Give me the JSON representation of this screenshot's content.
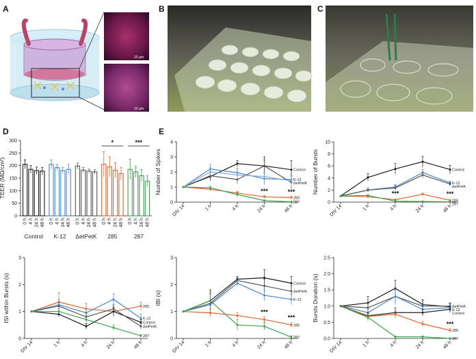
{
  "panel_labels": {
    "a": "A",
    "b": "B",
    "c": "C",
    "d": "D",
    "e": "E"
  },
  "colors": {
    "control": "#1a1a1a",
    "k12": "#4a86c8",
    "detpetk": "#555555",
    "s285": "#e0622b",
    "s287": "#3aa14a"
  },
  "scale_bars": [
    "10 µm",
    "10 µm"
  ],
  "chart_data": [
    {
      "id": "teer",
      "type": "bar",
      "ylabel": "TEER (MΩ/cm²)",
      "ylim": [
        0,
        300
      ],
      "yticks": [
        0,
        50,
        100,
        150,
        200,
        250,
        300
      ],
      "day_labels": [
        "0 h",
        "4 h",
        "24 h",
        "48 h"
      ],
      "groups": [
        {
          "name": "Control",
          "color": "#1a1a1a",
          "values": [
            205,
            185,
            180,
            178
          ],
          "err": [
            18,
            15,
            14,
            14
          ]
        },
        {
          "name": "K-12",
          "color": "#4a86c8",
          "values": [
            205,
            192,
            180,
            185
          ],
          "err": [
            18,
            12,
            12,
            20
          ]
        },
        {
          "name": "ΔetPetK",
          "color": "#555555",
          "values": [
            198,
            182,
            178,
            175
          ],
          "err": [
            12,
            10,
            8,
            8
          ]
        },
        {
          "name": "285",
          "color": "#e0622b",
          "values": [
            205,
            195,
            182,
            168
          ],
          "err": [
            50,
            40,
            30,
            25
          ]
        },
        {
          "name": "287",
          "color": "#3aa14a",
          "values": [
            185,
            175,
            160,
            138
          ],
          "err": [
            40,
            22,
            24,
            22
          ]
        }
      ],
      "significance": [
        {
          "group": "285",
          "label": "*"
        },
        {
          "group": "287",
          "label": "***"
        }
      ]
    },
    {
      "id": "spikes",
      "type": "line",
      "ylabel": "Number of Spikes",
      "ylim": [
        0,
        4
      ],
      "yticks": [
        0,
        1,
        2,
        3,
        4
      ],
      "x": [
        "DIV 14",
        "1 h",
        "4 h",
        "24 h",
        "48 h"
      ],
      "series": [
        {
          "name": "Control",
          "color": "#1a1a1a",
          "values": [
            1,
            1.7,
            2.55,
            2.4,
            2.15
          ],
          "err": [
            0,
            0.3,
            0.2,
            0.6,
            0.6
          ]
        },
        {
          "name": "",
          "color": "#555555",
          "values": [
            1,
            1.75,
            1.5,
            2.4,
            1.3
          ],
          "err": [
            0,
            0.3,
            0.3,
            0.4,
            0.4
          ]
        },
        {
          "name": "K-12",
          "color": "#4a86c8",
          "values": [
            1,
            2.2,
            1.95,
            1.55,
            1.5
          ],
          "err": [
            0,
            0.3,
            0.3,
            0.4,
            0.3
          ]
        },
        {
          "name": "ΔetPetK",
          "color": "#8aaed6",
          "values": [
            1,
            2.0,
            1.8,
            1.7,
            1.4
          ],
          "err": [
            0,
            0.3,
            0.3,
            0.3,
            0.3
          ]
        },
        {
          "name": "285",
          "color": "#e0622b",
          "values": [
            1,
            0.85,
            0.6,
            0.35,
            0.3
          ],
          "err": [
            0,
            0.1,
            0.1,
            0.08,
            0.08
          ]
        },
        {
          "name": "287",
          "color": "#3aa14a",
          "values": [
            1,
            0.95,
            0.5,
            0.1,
            0.02
          ],
          "err": [
            0,
            0.1,
            0.15,
            0.05,
            0.02
          ]
        }
      ],
      "annotations": [
        {
          "x": "24 h",
          "y": 0.6,
          "label": "***"
        },
        {
          "x": "48 h",
          "y": 0.55,
          "label": "***"
        }
      ]
    },
    {
      "id": "bursts",
      "type": "line",
      "ylabel": "Number of Bursts",
      "ylim": [
        0,
        10
      ],
      "yticks": [
        0,
        2,
        4,
        6,
        8,
        10
      ],
      "x": [
        "DIV 14",
        "1 h",
        "4 h",
        "24 h",
        "48 h"
      ],
      "series": [
        {
          "name": "Control",
          "color": "#1a1a1a",
          "values": [
            1,
            4.1,
            5.5,
            6.7,
            5.4
          ],
          "err": [
            0,
            0.6,
            0.9,
            0.9,
            0.7
          ]
        },
        {
          "name": "K-12",
          "color": "#4a86c8",
          "values": [
            1,
            2.0,
            2.5,
            4.9,
            3.2
          ],
          "err": [
            0,
            0.3,
            0.4,
            0.5,
            0.3
          ]
        },
        {
          "name": "ΔetPetK",
          "color": "#555555",
          "values": [
            1,
            2.0,
            2.35,
            4.5,
            3.0
          ],
          "err": [
            0,
            0.3,
            0.4,
            0.5,
            0.3
          ]
        },
        {
          "name": "285",
          "color": "#e0622b",
          "values": [
            1,
            0.9,
            0.4,
            1.3,
            0.3
          ],
          "err": [
            0,
            0.1,
            0.1,
            0.2,
            0.1
          ]
        },
        {
          "name": "287",
          "color": "#3aa14a",
          "values": [
            1,
            1.1,
            0.15,
            0.1,
            0.05
          ],
          "err": [
            0,
            0.15,
            0.1,
            0.05,
            0.05
          ]
        }
      ],
      "annotations": [
        {
          "x": "4 h",
          "y": 1.1,
          "label": "***"
        },
        {
          "x": "48 h",
          "y": 1.0,
          "label": "***"
        }
      ]
    },
    {
      "id": "isi",
      "type": "line",
      "ylabel": "ISI within Bursts (s)",
      "ylim": [
        0,
        3
      ],
      "yticks": [
        0,
        1,
        2,
        3
      ],
      "x": [
        "DIV 14",
        "1 h",
        "4 h",
        "24 h",
        "48 h"
      ],
      "series": [
        {
          "name": "285",
          "color": "#e0622b",
          "values": [
            1,
            1.35,
            1.1,
            1.0,
            1.2
          ],
          "err": [
            0,
            0.35,
            0.2,
            0.2,
            0.15
          ]
        },
        {
          "name": "K-12",
          "color": "#4a86c8",
          "values": [
            1,
            1.25,
            0.95,
            1.45,
            0.75
          ],
          "err": [
            0,
            0.2,
            0.15,
            0.2,
            0.15
          ]
        },
        {
          "name": "Control",
          "color": "#1a1a1a",
          "values": [
            1,
            0.9,
            0.45,
            1.0,
            0.6
          ],
          "err": [
            0,
            0.1,
            0.1,
            0.15,
            0.1
          ]
        },
        {
          "name": "ΔetPetK",
          "color": "#555555",
          "values": [
            1,
            1.2,
            0.8,
            1.1,
            0.45
          ],
          "err": [
            0,
            0.15,
            0.15,
            0.15,
            0.1
          ]
        },
        {
          "name": "287",
          "color": "#3aa14a",
          "values": [
            1,
            1.0,
            0.7,
            0.4,
            0.1
          ],
          "err": [
            0,
            0.1,
            0.15,
            0.1,
            0.05
          ]
        }
      ],
      "annotations": []
    },
    {
      "id": "ibi",
      "type": "line",
      "ylabel": "IBI (s)",
      "ylim": [
        0,
        3
      ],
      "yticks": [
        0,
        1,
        2,
        3
      ],
      "x": [
        "DIV 14",
        "1 h",
        "4 h",
        "24 h",
        "48 h"
      ],
      "series": [
        {
          "name": "Control",
          "color": "#1a1a1a",
          "values": [
            1,
            1.4,
            2.2,
            2.25,
            2.05
          ],
          "err": [
            0,
            0.4,
            0.1,
            0.3,
            0.25
          ]
        },
        {
          "name": "ΔetPetK",
          "color": "#555555",
          "values": [
            1,
            1.3,
            2.15,
            1.95,
            1.75
          ],
          "err": [
            0,
            0.4,
            0.1,
            0.25,
            0.2
          ]
        },
        {
          "name": "K-12",
          "color": "#4a86c8",
          "values": [
            1,
            1.25,
            2.05,
            1.6,
            1.45
          ],
          "err": [
            0,
            0.4,
            0.1,
            0.2,
            0.2
          ]
        },
        {
          "name": "285",
          "color": "#e0622b",
          "values": [
            1,
            0.95,
            0.85,
            0.7,
            0.5
          ],
          "err": [
            0,
            0.15,
            0.1,
            0.1,
            0.08
          ]
        },
        {
          "name": "287",
          "color": "#3aa14a",
          "values": [
            1,
            1.4,
            0.5,
            0.45,
            0.05
          ],
          "err": [
            0,
            0.3,
            0.2,
            0.15,
            0.05
          ]
        }
      ],
      "annotations": [
        {
          "x": "24 h",
          "y": 0.9,
          "label": "***"
        },
        {
          "x": "48 h",
          "y": 0.7,
          "label": "***"
        }
      ]
    },
    {
      "id": "bdur",
      "type": "line",
      "ylabel": "Bursts Duration (s)",
      "ylim": [
        0,
        2.5
      ],
      "yticks": [
        0.0,
        0.5,
        1.0,
        1.5,
        2.0,
        2.5
      ],
      "x": [
        "DIV 14",
        "1 h",
        "4 h",
        "24 h",
        "48 h"
      ],
      "series": [
        {
          "name": "",
          "color": "#1a1a1a",
          "values": [
            1,
            1.1,
            1.55,
            1.05,
            0.98
          ],
          "err": [
            0,
            0.2,
            0.25,
            0.15,
            0.1
          ]
        },
        {
          "name": "ΔetPetK",
          "color": "#555555",
          "values": [
            1,
            0.95,
            1.3,
            1.0,
            1.0
          ],
          "err": [
            0,
            0.15,
            0.2,
            0.15,
            0.1
          ]
        },
        {
          "name": "K-12",
          "color": "#4a86c8",
          "values": [
            1,
            0.8,
            1.3,
            0.9,
            0.95
          ],
          "err": [
            0,
            0.1,
            0.25,
            0.15,
            0.1
          ]
        },
        {
          "name": "Control",
          "color": "#222222",
          "values": [
            1,
            0.7,
            0.8,
            0.8,
            0.9
          ],
          "err": [
            0,
            0.1,
            0.15,
            0.1,
            0.1
          ]
        },
        {
          "name": "285",
          "color": "#e0622b",
          "values": [
            1,
            0.68,
            0.75,
            0.45,
            0.25
          ],
          "err": [
            0,
            0.08,
            0.1,
            0.08,
            0.05
          ]
        },
        {
          "name": "287",
          "color": "#3aa14a",
          "values": [
            1,
            0.65,
            0.05,
            0.05,
            0.0
          ],
          "err": [
            0,
            0.1,
            0.03,
            0.03,
            0.0
          ]
        }
      ],
      "annotations": [
        {
          "x": "48 h",
          "y": 0.38,
          "label": "***"
        }
      ]
    }
  ]
}
